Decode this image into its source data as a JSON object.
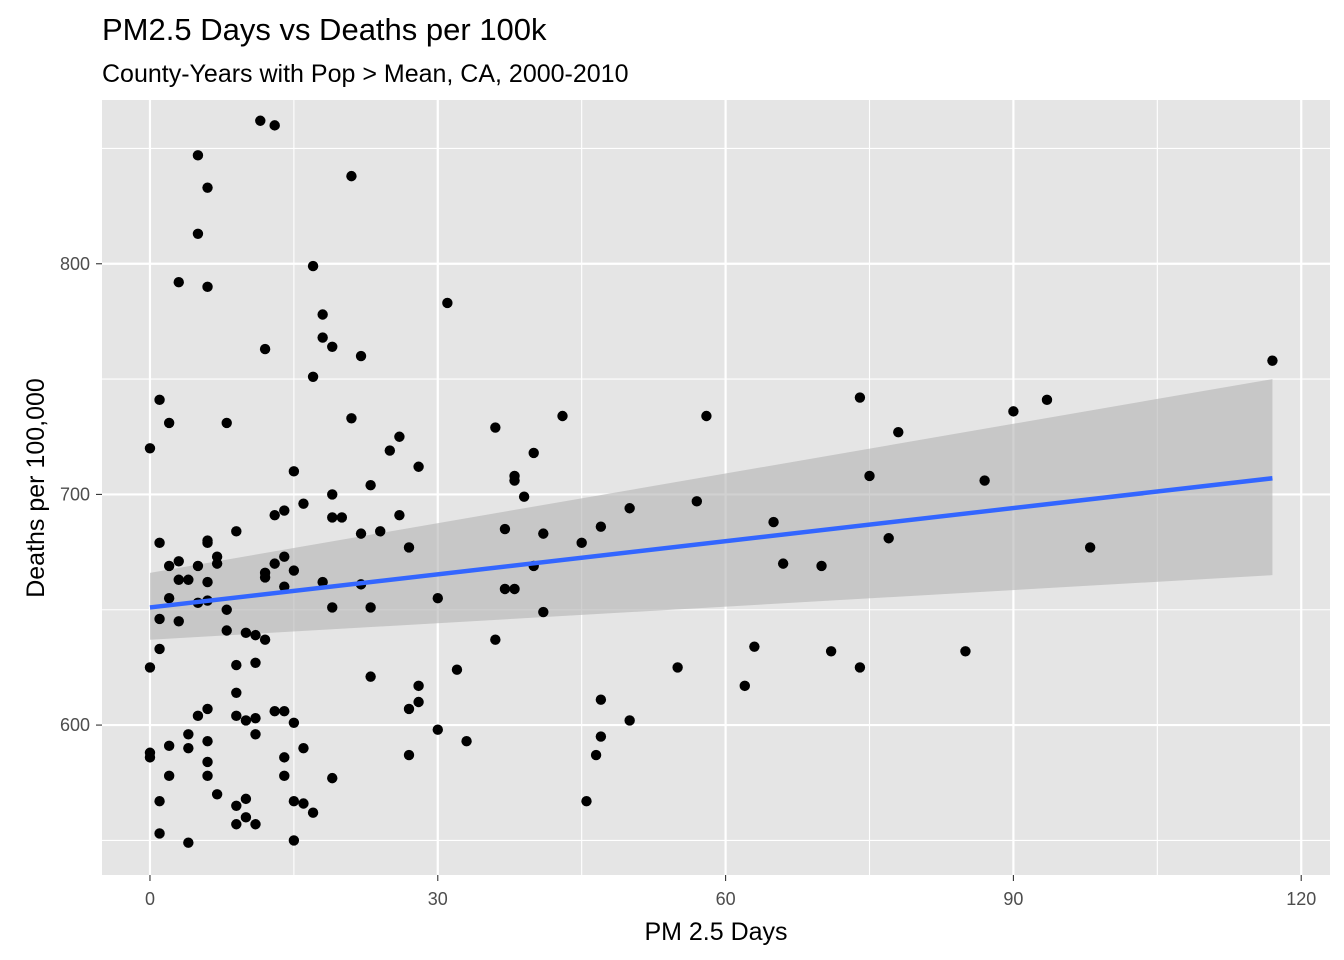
{
  "chart_data": {
    "type": "scatter",
    "title": "PM2.5 Days vs Deaths per 100k",
    "subtitle": "County-Years with Pop > Mean, CA, 2000-2010",
    "xlabel": "PM 2.5 Days",
    "ylabel": "Deaths per 100,000",
    "xlim": [
      -5,
      123
    ],
    "ylim": [
      535,
      871
    ],
    "x_ticks": [
      0,
      30,
      60,
      90,
      120
    ],
    "x_tick_labels": [
      "0",
      "30",
      "60",
      "90",
      "120"
    ],
    "y_ticks": [
      600,
      700,
      800
    ],
    "y_tick_labels": [
      "600",
      "700",
      "800"
    ],
    "x_minor": [
      15,
      45,
      75,
      105
    ],
    "y_minor": [
      550,
      650,
      750,
      850
    ],
    "grid": true,
    "colors": {
      "panel": "#e5e5e5",
      "grid": "#ffffff",
      "points": "#000000",
      "fit_line": "#3366ff",
      "ribbon": "#b3b3b3"
    },
    "points": [
      [
        0,
        720
      ],
      [
        0,
        625
      ],
      [
        0,
        588
      ],
      [
        0,
        586
      ],
      [
        1,
        741
      ],
      [
        1,
        679
      ],
      [
        1,
        646
      ],
      [
        1,
        633
      ],
      [
        1,
        567
      ],
      [
        1,
        553
      ],
      [
        2,
        731
      ],
      [
        2,
        669
      ],
      [
        2,
        655
      ],
      [
        2,
        591
      ],
      [
        2,
        578
      ],
      [
        3,
        792
      ],
      [
        3,
        671
      ],
      [
        3,
        663
      ],
      [
        3,
        645
      ],
      [
        4,
        663
      ],
      [
        4,
        596
      ],
      [
        4,
        590
      ],
      [
        4,
        549
      ],
      [
        5,
        847
      ],
      [
        5,
        813
      ],
      [
        5,
        669
      ],
      [
        5,
        653
      ],
      [
        5,
        604
      ],
      [
        6,
        833
      ],
      [
        6,
        790
      ],
      [
        6,
        680
      ],
      [
        6,
        679
      ],
      [
        6,
        662
      ],
      [
        6,
        654
      ],
      [
        6,
        607
      ],
      [
        6,
        593
      ],
      [
        6,
        584
      ],
      [
        6,
        578
      ],
      [
        7,
        673
      ],
      [
        7,
        670
      ],
      [
        7,
        570
      ],
      [
        8,
        731
      ],
      [
        8,
        650
      ],
      [
        8,
        641
      ],
      [
        9,
        684
      ],
      [
        9,
        626
      ],
      [
        9,
        614
      ],
      [
        9,
        604
      ],
      [
        9,
        565
      ],
      [
        9,
        557
      ],
      [
        10,
        640
      ],
      [
        10,
        602
      ],
      [
        10,
        568
      ],
      [
        10,
        560
      ],
      [
        11,
        639
      ],
      [
        11,
        627
      ],
      [
        11,
        603
      ],
      [
        11,
        596
      ],
      [
        11,
        557
      ],
      [
        11.5,
        862
      ],
      [
        12,
        763
      ],
      [
        12,
        666
      ],
      [
        12,
        664
      ],
      [
        12,
        637
      ],
      [
        13,
        860
      ],
      [
        13,
        691
      ],
      [
        13,
        670
      ],
      [
        13,
        606
      ],
      [
        14,
        693
      ],
      [
        14,
        673
      ],
      [
        14,
        660
      ],
      [
        14,
        606
      ],
      [
        14,
        586
      ],
      [
        14,
        578
      ],
      [
        15,
        710
      ],
      [
        15,
        667
      ],
      [
        15,
        601
      ],
      [
        15,
        567
      ],
      [
        15,
        550
      ],
      [
        16,
        696
      ],
      [
        16,
        590
      ],
      [
        16,
        566
      ],
      [
        17,
        799
      ],
      [
        17,
        751
      ],
      [
        17,
        562
      ],
      [
        18,
        778
      ],
      [
        18,
        768
      ],
      [
        18,
        662
      ],
      [
        19,
        764
      ],
      [
        19,
        700
      ],
      [
        19,
        690
      ],
      [
        19,
        651
      ],
      [
        19,
        577
      ],
      [
        20,
        690
      ],
      [
        21,
        838
      ],
      [
        21,
        733
      ],
      [
        22,
        760
      ],
      [
        22,
        683
      ],
      [
        22,
        661
      ],
      [
        23,
        704
      ],
      [
        23,
        651
      ],
      [
        23,
        621
      ],
      [
        24,
        684
      ],
      [
        25,
        719
      ],
      [
        26,
        725
      ],
      [
        26,
        691
      ],
      [
        27,
        677
      ],
      [
        27,
        607
      ],
      [
        27,
        587
      ],
      [
        28,
        712
      ],
      [
        28,
        617
      ],
      [
        28,
        610
      ],
      [
        30,
        655
      ],
      [
        30,
        598
      ],
      [
        31,
        783
      ],
      [
        32,
        624
      ],
      [
        33,
        593
      ],
      [
        36,
        729
      ],
      [
        36,
        637
      ],
      [
        37,
        685
      ],
      [
        37,
        659
      ],
      [
        38,
        708
      ],
      [
        38,
        706
      ],
      [
        38,
        659
      ],
      [
        39,
        699
      ],
      [
        40,
        718
      ],
      [
        40,
        669
      ],
      [
        41,
        683
      ],
      [
        41,
        649
      ],
      [
        43,
        734
      ],
      [
        45,
        679
      ],
      [
        45.5,
        567
      ],
      [
        46.5,
        587
      ],
      [
        47,
        686
      ],
      [
        47,
        611
      ],
      [
        47,
        595
      ],
      [
        50,
        694
      ],
      [
        50,
        602
      ],
      [
        55,
        625
      ],
      [
        57,
        697
      ],
      [
        58,
        734
      ],
      [
        62,
        617
      ],
      [
        63,
        634
      ],
      [
        65,
        688
      ],
      [
        66,
        670
      ],
      [
        70,
        669
      ],
      [
        71,
        632
      ],
      [
        74,
        742
      ],
      [
        74,
        625
      ],
      [
        75,
        708
      ],
      [
        77,
        681
      ],
      [
        78,
        727
      ],
      [
        85,
        632
      ],
      [
        87,
        706
      ],
      [
        90,
        736
      ],
      [
        93.5,
        741
      ],
      [
        98,
        677
      ],
      [
        117,
        758
      ]
    ],
    "fit_line": {
      "x": [
        0,
        117
      ],
      "y": [
        651,
        707
      ]
    },
    "ribbon": {
      "x": [
        0,
        117
      ],
      "lower": [
        637,
        665
      ],
      "upper": [
        666,
        750
      ]
    }
  }
}
